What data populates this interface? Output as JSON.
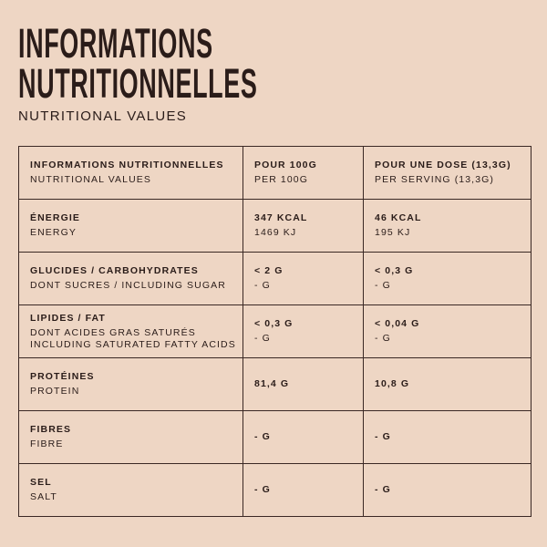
{
  "header": {
    "title": [
      "INFORMATIONS",
      "NUTRITIONNELLES"
    ],
    "subtitle": "NUTRITIONAL VALUES"
  },
  "table": {
    "rows": [
      [
        [
          "INFORMATIONS NUTRITIONNELLES",
          "NUTRITIONAL VALUES"
        ],
        [
          "POUR 100G",
          "PER 100G"
        ],
        [
          "POUR UNE DOSE (13,3G)",
          "PER SERVING (13,3G)"
        ]
      ],
      [
        [
          "ÉNERGIE",
          "ENERGY"
        ],
        [
          "347 KCAL",
          "1469 KJ"
        ],
        [
          "46 KCAL",
          "195 KJ"
        ]
      ],
      [
        [
          "GLUCIDES / CARBOHYDRATES",
          "DONT SUCRES / INCLUDING SUGAR"
        ],
        [
          "< 2 G",
          "- G"
        ],
        [
          "< 0,3 G",
          "- G"
        ]
      ],
      [
        [
          "LIPIDES / FAT",
          "DONT ACIDES GRAS SATURÉS",
          "INCLUDING SATURATED FATTY ACIDS"
        ],
        [
          "< 0,3 G",
          "- G"
        ],
        [
          "< 0,04 G",
          "- G"
        ]
      ],
      [
        [
          "PROTÉINES",
          "PROTEIN"
        ],
        [
          "81,4 G"
        ],
        [
          "10,8 G"
        ]
      ],
      [
        [
          "FIBRES",
          "FIBRE"
        ],
        [
          "- G"
        ],
        [
          "- G"
        ]
      ],
      [
        [
          "SEL",
          "SALT"
        ],
        [
          "- G"
        ],
        [
          "- G"
        ]
      ]
    ]
  }
}
